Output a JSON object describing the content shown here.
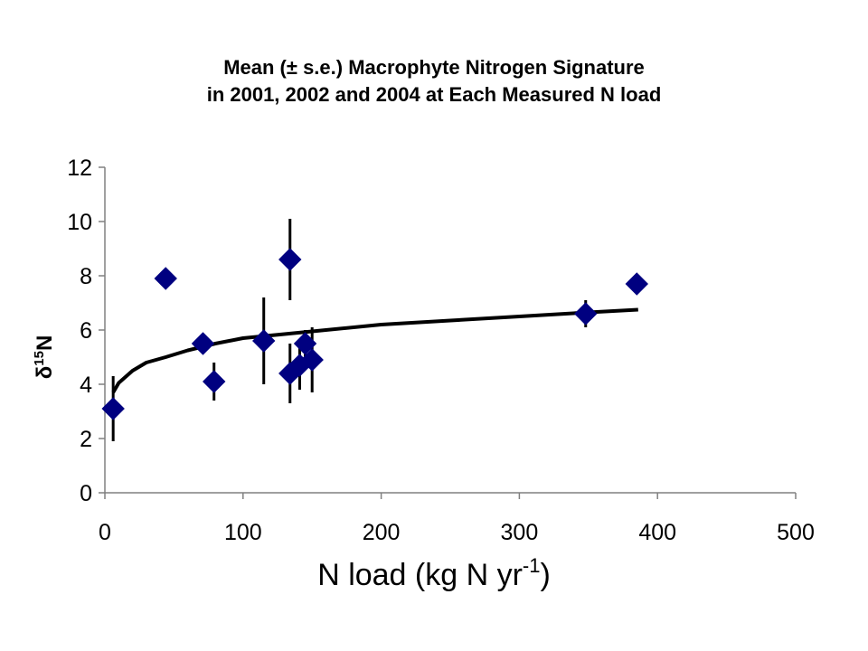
{
  "chart_data": {
    "type": "scatter",
    "title": "Mean (± s.e.) Macrophyte Nitrogen Signature",
    "subtitle": "in 2001, 2002 and 2004 at Each Measured N load",
    "xlabel": {
      "main": "N load (kg N yr",
      "sup": "-1",
      "close": ")"
    },
    "ylabel": {
      "pre": "δ",
      "sup": "15",
      "post": "N"
    },
    "xlim": [
      0,
      500
    ],
    "ylim": [
      0,
      12
    ],
    "xticks": [
      "0",
      "100",
      "200",
      "300",
      "400",
      "500"
    ],
    "yticks": [
      "0",
      "2",
      "4",
      "6",
      "8",
      "10",
      "12"
    ],
    "grid": false,
    "colors": {
      "marker": "#000080",
      "errorbar": "#000000",
      "fit": "#000000"
    },
    "points": [
      {
        "x": 6,
        "y": 3.1,
        "err": 1.2
      },
      {
        "x": 44,
        "y": 7.9,
        "err": 0
      },
      {
        "x": 71,
        "y": 5.5,
        "err": 0
      },
      {
        "x": 79,
        "y": 4.1,
        "err": 0.7
      },
      {
        "x": 115,
        "y": 5.6,
        "err": 1.6
      },
      {
        "x": 134,
        "y": 8.6,
        "err": 1.5
      },
      {
        "x": 134,
        "y": 4.4,
        "err": 1.1
      },
      {
        "x": 141,
        "y": 4.7,
        "err": 0.9
      },
      {
        "x": 145,
        "y": 5.5,
        "err": 0.5
      },
      {
        "x": 150,
        "y": 4.9,
        "err": 1.2
      },
      {
        "x": 348,
        "y": 6.6,
        "err": 0.5
      },
      {
        "x": 385,
        "y": 7.7,
        "err": 0
      }
    ],
    "fit": {
      "type": "logarithmic",
      "x_range": [
        6,
        386
      ],
      "points": [
        [
          6,
          3.7
        ],
        [
          10,
          4.05
        ],
        [
          20,
          4.5
        ],
        [
          30,
          4.8
        ],
        [
          44,
          5.0
        ],
        [
          60,
          5.25
        ],
        [
          80,
          5.5
        ],
        [
          100,
          5.7
        ],
        [
          150,
          5.95
        ],
        [
          200,
          6.2
        ],
        [
          250,
          6.35
        ],
        [
          300,
          6.5
        ],
        [
          350,
          6.65
        ],
        [
          386,
          6.75
        ]
      ]
    }
  }
}
